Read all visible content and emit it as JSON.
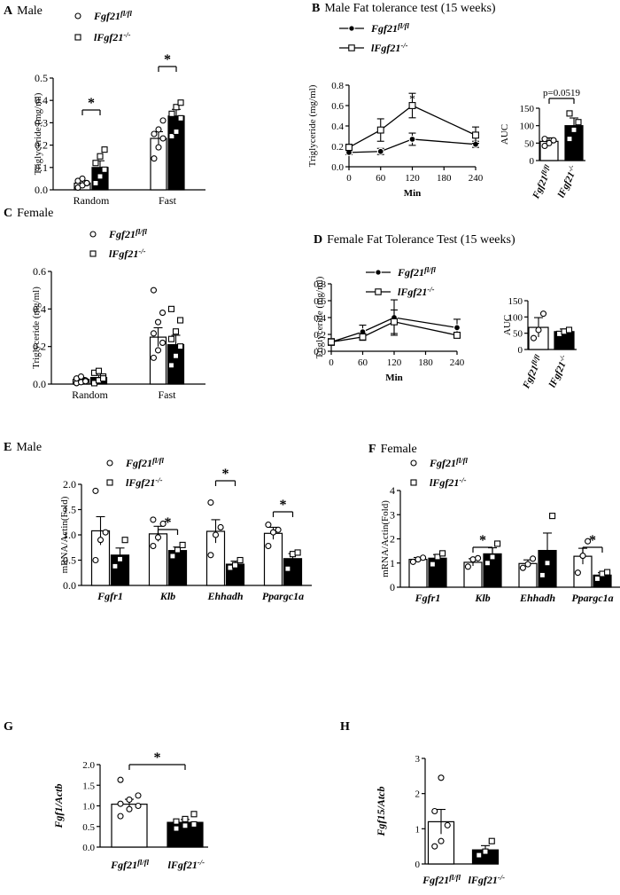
{
  "colors": {
    "ink": "#000000",
    "paper": "#ffffff"
  },
  "legend": {
    "ctrl": "Fgf21",
    "ctrl_sup": "fl/fl",
    "ko": "lFgf21",
    "ko_sup": "-/-"
  },
  "chart_data": [
    {
      "id": "A",
      "type": "bar",
      "panel": "A",
      "title": "Male",
      "ylabel": "Triglyceride (mg/ml)",
      "xlabel": "",
      "categories": [
        "Random",
        "Fast"
      ],
      "ylim": [
        0,
        0.5
      ],
      "yticks": [
        "0.0",
        "0.1",
        "0.2",
        "0.3",
        "0.4",
        "0.5"
      ],
      "ytick_values": [
        0,
        0.1,
        0.2,
        0.3,
        0.4,
        0.5
      ],
      "series": [
        {
          "name": "Fgf21 fl/fl",
          "style": "open",
          "marker": "circle",
          "values": [
            0.03,
            0.23
          ],
          "errors": [
            0.012,
            0.03
          ],
          "points": [
            [
              0.01,
              0.02,
              0.03,
              0.04,
              0.05,
              0.03
            ],
            [
              0.14,
              0.19,
              0.23,
              0.25,
              0.27,
              0.31
            ]
          ]
        },
        {
          "name": "lFgf21 -/-",
          "style": "filled",
          "marker": "square",
          "values": [
            0.1,
            0.33
          ],
          "errors": [
            0.03,
            0.03
          ],
          "points": [
            [
              0.03,
              0.06,
              0.09,
              0.12,
              0.15,
              0.18
            ],
            [
              0.24,
              0.26,
              0.32,
              0.34,
              0.37,
              0.39
            ]
          ]
        }
      ],
      "significance": [
        {
          "category": 0,
          "label": "*"
        },
        {
          "category": 1,
          "label": "*"
        }
      ]
    },
    {
      "id": "B",
      "type": "line",
      "panel": "B",
      "title": "Male Fat tolerance test (15 weeks)",
      "ylabel": "Triglyceride (mg/ml)",
      "xlabel": "Min",
      "x": [
        0,
        60,
        120,
        240
      ],
      "xticks": [
        0,
        60,
        120,
        180,
        240
      ],
      "xlim": [
        0,
        240
      ],
      "ylim": [
        0,
        0.8
      ],
      "yticks": [
        "0.0",
        "0.2",
        "0.4",
        "0.6",
        "0.8"
      ],
      "ytick_values": [
        0,
        0.2,
        0.4,
        0.6,
        0.8
      ],
      "series": [
        {
          "name": "Fgf21 fl/fl",
          "marker": "filled-circle",
          "values": [
            0.14,
            0.15,
            0.27,
            0.22
          ],
          "errors": [
            0.02,
            0.03,
            0.06,
            0.03
          ]
        },
        {
          "name": "lFgf21 -/-",
          "marker": "open-square",
          "values": [
            0.19,
            0.36,
            0.6,
            0.31
          ],
          "errors": [
            0.03,
            0.11,
            0.12,
            0.08
          ]
        }
      ],
      "significance": [
        {
          "x": 120,
          "label": "*"
        }
      ]
    },
    {
      "id": "B_auc",
      "type": "bar",
      "panel": "B",
      "ylabel": "AUC",
      "categories": [
        "Fgf21 fl/fl",
        "lFgf21 -/-"
      ],
      "ylim": [
        0,
        150
      ],
      "yticks": [
        "0",
        "50",
        "100",
        "150"
      ],
      "ytick_values": [
        0,
        50,
        100,
        150
      ],
      "values": [
        55,
        100
      ],
      "errors": [
        10,
        22
      ],
      "points": [
        [
          42,
          50,
          58,
          62
        ],
        [
          62,
          88,
          110,
          135
        ]
      ],
      "annotation": "p=0.0519"
    },
    {
      "id": "C",
      "type": "bar",
      "panel": "C",
      "title": "Female",
      "ylabel": "Triglyceride (mg/ml)",
      "xlabel": "",
      "categories": [
        "Random",
        "Fast"
      ],
      "ylim": [
        0,
        0.6
      ],
      "yticks": [
        "0.0",
        "0.2",
        "0.4",
        "0.6"
      ],
      "ytick_values": [
        0,
        0.2,
        0.4,
        0.6
      ],
      "series": [
        {
          "name": "Fgf21 fl/fl",
          "style": "open",
          "marker": "circle",
          "values": [
            0.025,
            0.25
          ],
          "errors": [
            0.01,
            0.05
          ],
          "points": [
            [
              0.005,
              0.01,
              0.02,
              0.03,
              0.04,
              0.015
            ],
            [
              0.14,
              0.18,
              0.22,
              0.27,
              0.33,
              0.38,
              0.5
            ]
          ]
        },
        {
          "name": "lFgf21 -/-",
          "style": "filled",
          "marker": "square",
          "values": [
            0.035,
            0.21
          ],
          "errors": [
            0.012,
            0.05
          ],
          "points": [
            [
              0.005,
              0.02,
              0.04,
              0.06,
              0.07,
              0.03
            ],
            [
              0.1,
              0.15,
              0.2,
              0.24,
              0.28,
              0.34,
              0.4
            ]
          ]
        }
      ],
      "significance": []
    },
    {
      "id": "D",
      "type": "line",
      "panel": "D",
      "title": "Female Fat Tolerance Test (15 weeks)",
      "ylabel": "Triglyceride (mg/ml)",
      "xlabel": "Min",
      "x": [
        0,
        60,
        120,
        240
      ],
      "xticks": [
        0,
        60,
        120,
        180,
        240
      ],
      "xlim": [
        0,
        240
      ],
      "ylim": [
        0,
        0.8
      ],
      "yticks": [
        "0.0",
        "0.2",
        "0.4",
        "0.6",
        "0.8"
      ],
      "ytick_values": [
        0,
        0.2,
        0.4,
        0.6,
        0.8
      ],
      "series": [
        {
          "name": "Fgf21 fl/fl",
          "marker": "filled-circle",
          "values": [
            0.11,
            0.23,
            0.4,
            0.28
          ],
          "errors": [
            0.04,
            0.08,
            0.21,
            0.1
          ]
        },
        {
          "name": "lFgf21 -/-",
          "marker": "open-square",
          "values": [
            0.11,
            0.17,
            0.35,
            0.19
          ],
          "errors": [
            0.03,
            0.04,
            0.14,
            0.03
          ]
        }
      ],
      "significance": []
    },
    {
      "id": "D_auc",
      "type": "bar",
      "panel": "D",
      "ylabel": "AUC",
      "categories": [
        "Fgf21 fl/fl",
        "lFgf21 -/-"
      ],
      "ylim": [
        0,
        150
      ],
      "yticks": [
        "0",
        "50",
        "100",
        "150"
      ],
      "ytick_values": [
        0,
        50,
        100,
        150
      ],
      "values": [
        68,
        55
      ],
      "errors": [
        30,
        8
      ],
      "points": [
        [
          35,
          60,
          110
        ],
        [
          48,
          55,
          60
        ]
      ]
    },
    {
      "id": "E",
      "type": "bar",
      "panel": "E",
      "title": "Male",
      "ylabel": "mRNA/Actin(Fold)",
      "xlabel": "",
      "categories": [
        "Fgfr1",
        "Klb",
        "Ehhadh",
        "Ppargc1a"
      ],
      "ylim": [
        0,
        2.0
      ],
      "yticks": [
        "0.0",
        "0.5",
        "1.0",
        "1.5",
        "2.0"
      ],
      "ytick_values": [
        0,
        0.5,
        1.0,
        1.5,
        2.0
      ],
      "series": [
        {
          "name": "Fgf21 fl/fl",
          "style": "open",
          "marker": "circle",
          "values": [
            1.08,
            1.02,
            1.07,
            1.03
          ],
          "errors": [
            0.28,
            0.15,
            0.23,
            0.12
          ],
          "points": [
            [
              0.5,
              0.9,
              1.05,
              1.87
            ],
            [
              0.78,
              0.95,
              1.22,
              1.3
            ],
            [
              0.6,
              1.0,
              1.15,
              1.64
            ],
            [
              0.78,
              1.05,
              1.1,
              1.2
            ]
          ]
        },
        {
          "name": "lFgf21 -/-",
          "style": "filled",
          "marker": "square",
          "values": [
            0.6,
            0.69,
            0.42,
            0.53
          ],
          "errors": [
            0.14,
            0.07,
            0.06,
            0.1
          ],
          "points": [
            [
              0.38,
              0.52,
              0.9
            ],
            [
              0.58,
              0.7,
              0.8
            ],
            [
              0.35,
              0.4,
              0.5
            ],
            [
              0.33,
              0.62,
              0.65
            ]
          ]
        }
      ],
      "significance": [
        {
          "category": 1,
          "label": "*"
        },
        {
          "category": 2,
          "label": "*"
        },
        {
          "category": 3,
          "label": "*"
        }
      ]
    },
    {
      "id": "F",
      "type": "bar",
      "panel": "F",
      "title": "Female",
      "ylabel": "mRNA/Actin(Fold)",
      "xlabel": "",
      "categories": [
        "Fgfr1",
        "Klb",
        "Ehhadh",
        "Ppargc1a"
      ],
      "ylim": [
        0,
        4
      ],
      "yticks": [
        "0",
        "1",
        "2",
        "3",
        "4"
      ],
      "ytick_values": [
        0,
        1,
        2,
        3,
        4
      ],
      "series": [
        {
          "name": "Fgf21 fl/fl",
          "style": "open",
          "marker": "circle",
          "values": [
            1.15,
            1.03,
            0.98,
            1.28
          ],
          "errors": [
            0.08,
            0.15,
            0.15,
            0.33
          ],
          "points": [
            [
              1.05,
              1.15,
              1.22
            ],
            [
              0.85,
              1.15,
              1.2
            ],
            [
              0.8,
              0.95,
              1.18
            ],
            [
              0.6,
              1.3,
              1.9
            ]
          ]
        },
        {
          "name": "lFgf21 -/-",
          "style": "filled",
          "marker": "square",
          "values": [
            1.2,
            1.38,
            1.52,
            0.5
          ],
          "errors": [
            0.15,
            0.25,
            0.72,
            0.1
          ],
          "points": [
            [
              0.95,
              1.25,
              1.4
            ],
            [
              1.0,
              1.25,
              1.8
            ],
            [
              0.5,
              1.0,
              2.95
            ],
            [
              0.35,
              0.55,
              0.62
            ]
          ]
        }
      ],
      "significance": [
        {
          "category": 1,
          "label": "*"
        },
        {
          "category": 3,
          "label": "*"
        }
      ]
    },
    {
      "id": "G",
      "type": "bar",
      "panel": "G",
      "ylabel": "Fgf1/Actb",
      "categories": [
        "Fgf21 fl/fl",
        "lFgf21 -/-"
      ],
      "ylim": [
        0,
        2.0
      ],
      "yticks": [
        "0.0",
        "0.5",
        "1.0",
        "1.5",
        "2.0"
      ],
      "ytick_values": [
        0,
        0.5,
        1.0,
        1.5,
        2.0
      ],
      "values": [
        1.04,
        0.6
      ],
      "errors": [
        0.12,
        0.07
      ],
      "points": [
        [
          0.75,
          0.92,
          1.0,
          1.05,
          1.15,
          1.25,
          1.63
        ],
        [
          0.45,
          0.52,
          0.55,
          0.62,
          0.68,
          0.8
        ]
      ],
      "significance": [
        {
          "label": "*"
        }
      ]
    },
    {
      "id": "H",
      "type": "bar",
      "panel": "H",
      "ylabel": "Fgf15/Atcb",
      "categories": [
        "Fgf21 fl/fl",
        "lFgf21 -/-"
      ],
      "ylim": [
        0,
        3
      ],
      "yticks": [
        "0",
        "1",
        "2",
        "3"
      ],
      "ytick_values": [
        0,
        1,
        2,
        3
      ],
      "values": [
        1.2,
        0.4
      ],
      "errors": [
        0.35,
        0.12
      ],
      "points": [
        [
          0.5,
          0.65,
          1.1,
          1.5,
          2.45
        ],
        [
          0.25,
          0.35,
          0.65
        ]
      ]
    }
  ]
}
